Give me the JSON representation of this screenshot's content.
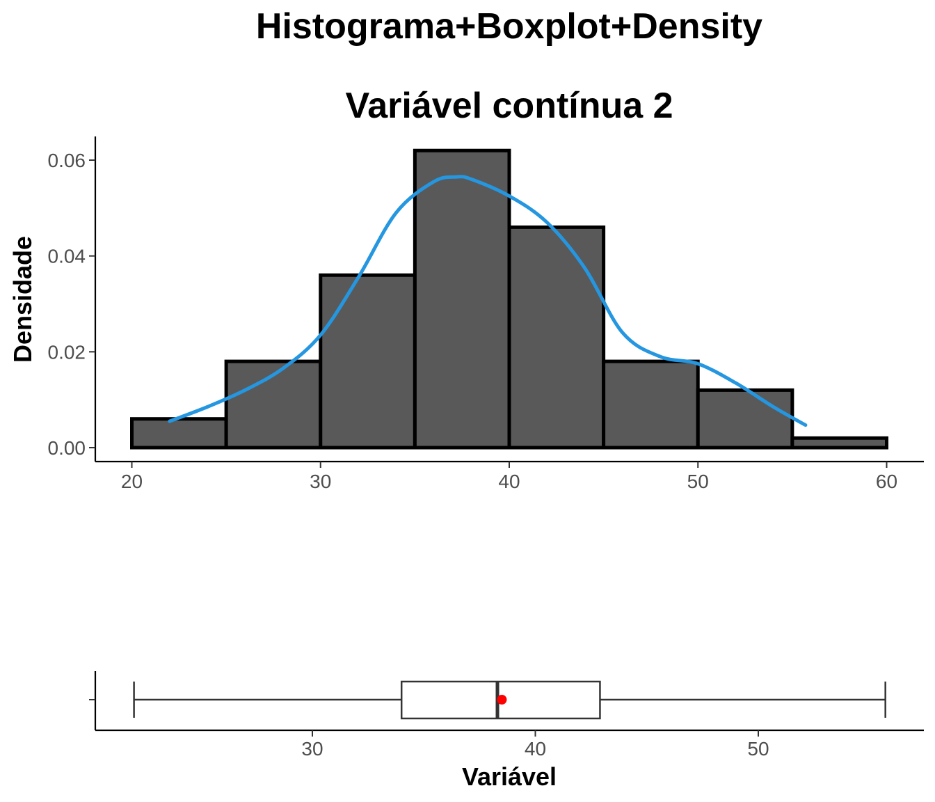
{
  "title": "Histograma+Boxplot+Density",
  "subtitle": "Variável contínua 2",
  "colors": {
    "bar_fill": "#595959",
    "bar_stroke": "#000000",
    "density_line": "#2596e0",
    "mean_point": "#ff0000",
    "box_fill": "#ffffff",
    "box_stroke": "#333333"
  },
  "chart_data": [
    {
      "type": "bar",
      "subtype": "histogram",
      "ylabel": "Densidade",
      "xlabel": "",
      "xlim": [
        18,
        62
      ],
      "ylim": [
        0,
        0.065
      ],
      "x_ticks": [
        20,
        30,
        40,
        50,
        60
      ],
      "y_ticks": [
        0.0,
        0.02,
        0.04,
        0.06
      ],
      "y_tick_labels": [
        "0.00",
        "0.02",
        "0.04",
        "0.06"
      ],
      "bins": [
        {
          "start": 20,
          "end": 25,
          "density": 0.006
        },
        {
          "start": 25,
          "end": 30,
          "density": 0.018
        },
        {
          "start": 30,
          "end": 35,
          "density": 0.036
        },
        {
          "start": 35,
          "end": 40,
          "density": 0.062
        },
        {
          "start": 40,
          "end": 45,
          "density": 0.046
        },
        {
          "start": 45,
          "end": 50,
          "density": 0.018
        },
        {
          "start": 50,
          "end": 55,
          "density": 0.012
        },
        {
          "start": 55,
          "end": 60,
          "density": 0.002
        }
      ],
      "density_curve": {
        "x": [
          22,
          24,
          26,
          28,
          30,
          32,
          34,
          36,
          37.2,
          38,
          40,
          42,
          44,
          46,
          48,
          50,
          52,
          54,
          55.7
        ],
        "y": [
          0.0055,
          0.0085,
          0.012,
          0.0165,
          0.0235,
          0.0355,
          0.049,
          0.0555,
          0.0565,
          0.056,
          0.0525,
          0.047,
          0.0375,
          0.024,
          0.019,
          0.0175,
          0.0135,
          0.0085,
          0.0047
        ]
      }
    },
    {
      "type": "boxplot",
      "xlabel": "Variável",
      "ylabel": "",
      "xlim": [
        20.2,
        57.3
      ],
      "x_ticks": [
        30,
        40,
        50
      ],
      "whisker_low": 22,
      "q1": 34,
      "median": 38.3,
      "q3": 42.9,
      "whisker_high": 55.7,
      "mean": 38.5
    }
  ]
}
